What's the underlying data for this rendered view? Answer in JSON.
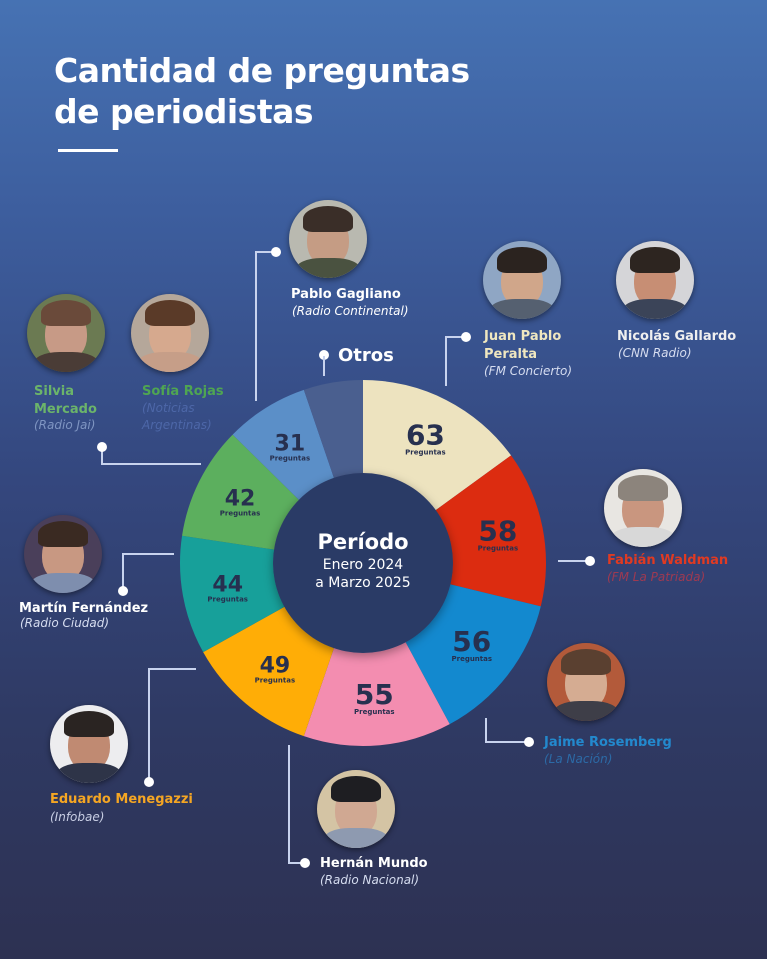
{
  "header": {
    "title_line1": "Cantidad de preguntas",
    "title_line2": "de periodistas"
  },
  "center": {
    "title": "Período",
    "range_line1": "Enero 2024",
    "range_line2": "a Marzo 2025"
  },
  "unit_label": "Preguntas",
  "otros_label": "Otros",
  "colors": {
    "bg_top": "#4672B3",
    "bg_bottom": "#2D3152",
    "donut_hole": "#2C3A66",
    "label_dark": "#27304F",
    "connector": "#C8D3EE"
  },
  "journalists": [
    {
      "name": "Juan Pablo Peralta",
      "name_lines": [
        "Juan Pablo",
        "Peralta"
      ],
      "outlet": "(FM Concierto)",
      "questions": 63,
      "slice_color": "#EDE3BF",
      "name_color": "#EFE7C0",
      "outlet_color": "#D6DDF0"
    },
    {
      "name": "Fabián Waldman",
      "name_lines": [
        "Fabián Waldman"
      ],
      "outlet": "(FM La Patriada)",
      "questions": 58,
      "slice_color": "#DC2C10",
      "name_color": "#E03A22",
      "outlet_color": "#9E3A52"
    },
    {
      "name": "Jaime Rosemberg",
      "name_lines": [
        "Jaime Rosemberg"
      ],
      "outlet": "(La Nación)",
      "questions": 56,
      "slice_color": "#1389CF",
      "name_color": "#2389CD",
      "outlet_color": "#2C6AA6"
    },
    {
      "name": "Hernán Mundo",
      "name_lines": [
        "Hernán Mundo"
      ],
      "outlet": "(Radio Nacional)",
      "questions": 55,
      "slice_color": "#F38DB0",
      "name_color": "#FFFFFF",
      "outlet_color": "#D6DDF0"
    },
    {
      "name": "Eduardo Menegazzi",
      "name_lines": [
        "Eduardo Menegazzi"
      ],
      "outlet": "(Infobae)",
      "questions": 49,
      "slice_color": "#FFAD06",
      "name_color": "#F5A623",
      "outlet_color": "#C8CEE4"
    },
    {
      "name": "Martín Fernández",
      "name_lines": [
        "Martín Fernández"
      ],
      "outlet": "(Radio Ciudad)",
      "questions": 44,
      "slice_color": "#17A09A",
      "name_color": "#FFFFFF",
      "outlet_color": "#D6DDF0"
    },
    {
      "name": "Silvia Mercado",
      "name_lines": [
        "Silvia",
        "Mercado"
      ],
      "outlet": "(Radio Jai)",
      "questions": 42,
      "slice_color": "#5CAF5E",
      "name_color": "#6BB46A",
      "outlet_color": "#7F95C2"
    },
    {
      "name": "Pablo Gagliano",
      "name_lines": [
        "Pablo Gagliano"
      ],
      "outlet": "(Radio Continental)",
      "questions": 31,
      "slice_color": "#5B8FC8",
      "name_color": "#FFFFFF",
      "outlet_color": "#D6DDF0"
    },
    {
      "name": "Nicolás Gallardo",
      "name_lines": [
        "Nicolás Gallardo"
      ],
      "outlet": "(CNN Radio)",
      "questions": null,
      "slice_color": null,
      "name_color": "#EFEFEF",
      "outlet_color": "#D6DDF0"
    },
    {
      "name": "Sofía Rojas",
      "name_lines": [
        "Sofía Rojas"
      ],
      "outlet_lines": [
        "(Noticias",
        "Argentinas)"
      ],
      "outlet": "(Noticias Argentinas)",
      "questions": null,
      "slice_color": null,
      "name_color": "#4FA552",
      "outlet_color": "#4D67A8"
    }
  ],
  "chart_data": {
    "type": "pie",
    "variant": "donut",
    "title": "Cantidad de preguntas de periodistas",
    "subtitle": "Período Enero 2024 a Marzo 2025",
    "categories": [
      "Juan Pablo Peralta",
      "Fabián Waldman",
      "Jaime Rosemberg",
      "Hernán Mundo",
      "Eduardo Menegazzi",
      "Martín Fernández",
      "Silvia Mercado",
      "Pablo Gagliano",
      "Otros"
    ],
    "values": [
      63,
      58,
      56,
      55,
      49,
      44,
      42,
      31,
      22
    ],
    "value_labels": [
      "63",
      "58",
      "56",
      "55",
      "49",
      "44",
      "42",
      "31",
      ""
    ],
    "colors": [
      "#EDE3BF",
      "#DC2C10",
      "#1389CF",
      "#F38DB0",
      "#FFAD06",
      "#17A09A",
      "#5CAF5E",
      "#5B8FC8",
      "#4A5F8F"
    ],
    "unit": "Preguntas",
    "note": "Otros slice is unlabeled; value estimated from arc angle",
    "start_angle": "12 o'clock",
    "direction": "clockwise"
  }
}
